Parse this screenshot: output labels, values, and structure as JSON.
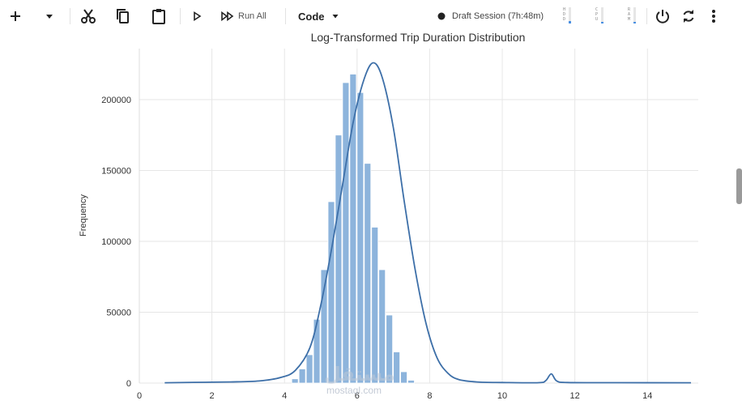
{
  "toolbar": {
    "run_all_label": "Run All",
    "cell_type_label": "Code",
    "session_label": "Draft Session (7h:48m)",
    "meters": [
      {
        "name": "hdd",
        "letters": "HDD",
        "fill": 0.15
      },
      {
        "name": "cpu",
        "letters": "CPU",
        "fill": 0.1
      },
      {
        "name": "ram",
        "letters": "RAM",
        "fill": 0.1
      }
    ],
    "session_status_color": "#222222"
  },
  "watermark": {
    "text": "مستقل",
    "sub": "mostaql.com"
  },
  "chart_data": {
    "type": "bar",
    "title": "Log-Transformed Trip Duration Distribution",
    "xlabel": "",
    "ylabel": "Frequency",
    "xlim": [
      0,
      15.4
    ],
    "ylim": [
      0,
      236000
    ],
    "xticks": [
      0,
      2,
      4,
      6,
      8,
      10,
      12,
      14
    ],
    "yticks": [
      0,
      50000,
      100000,
      150000,
      200000
    ],
    "grid": true,
    "bar_color": "#8db4dc",
    "kde_color": "#3d6fa8",
    "bin_width": 0.2,
    "bins": [
      {
        "x": 4.2,
        "value": 3000
      },
      {
        "x": 4.4,
        "value": 10000
      },
      {
        "x": 4.6,
        "value": 20000
      },
      {
        "x": 4.8,
        "value": 45000
      },
      {
        "x": 5.0,
        "value": 80000
      },
      {
        "x": 5.2,
        "value": 128000
      },
      {
        "x": 5.4,
        "value": 175000
      },
      {
        "x": 5.6,
        "value": 212000
      },
      {
        "x": 5.8,
        "value": 218000
      },
      {
        "x": 6.0,
        "value": 205000
      },
      {
        "x": 6.2,
        "value": 155000
      },
      {
        "x": 6.4,
        "value": 110000
      },
      {
        "x": 6.6,
        "value": 80000
      },
      {
        "x": 6.8,
        "value": 48000
      },
      {
        "x": 7.0,
        "value": 22000
      },
      {
        "x": 7.2,
        "value": 8000
      },
      {
        "x": 7.4,
        "value": 2000
      }
    ],
    "kde": [
      [
        0.7,
        200
      ],
      [
        1.5,
        500
      ],
      [
        2.5,
        800
      ],
      [
        3.3,
        1500
      ],
      [
        3.9,
        4000
      ],
      [
        4.3,
        9000
      ],
      [
        4.7,
        25000
      ],
      [
        5.0,
        55000
      ],
      [
        5.3,
        95000
      ],
      [
        5.6,
        140000
      ],
      [
        5.9,
        185000
      ],
      [
        6.2,
        215000
      ],
      [
        6.45,
        226000
      ],
      [
        6.7,
        215000
      ],
      [
        7.0,
        180000
      ],
      [
        7.3,
        128000
      ],
      [
        7.6,
        80000
      ],
      [
        7.9,
        42000
      ],
      [
        8.2,
        18000
      ],
      [
        8.5,
        7000
      ],
      [
        8.8,
        2500
      ],
      [
        9.3,
        800
      ],
      [
        10.0,
        400
      ],
      [
        11.0,
        300
      ],
      [
        11.2,
        1800
      ],
      [
        11.35,
        6500
      ],
      [
        11.5,
        1500
      ],
      [
        11.8,
        400
      ],
      [
        13.0,
        300
      ],
      [
        15.2,
        200
      ]
    ]
  }
}
